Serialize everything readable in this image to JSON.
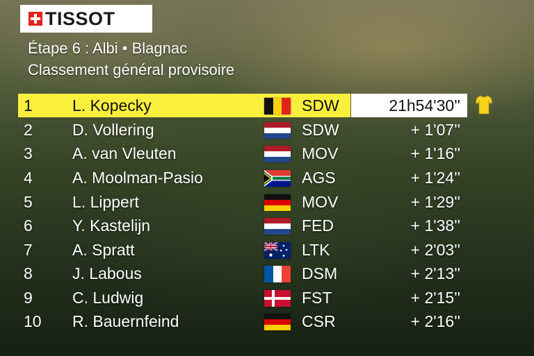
{
  "brand": {
    "name": "TISSOT"
  },
  "header": {
    "line1": "Étape 6 : Albi • Blagnac",
    "line2": "Classement général provisoire"
  },
  "standings": [
    {
      "rank": "1",
      "rider": "L. Kopecky",
      "flag": "belgium",
      "team": "SDW",
      "time": "21h54'30''"
    },
    {
      "rank": "2",
      "rider": "D. Vollering",
      "flag": "netherlands",
      "team": "SDW",
      "time": "+  1'07''"
    },
    {
      "rank": "3",
      "rider": "A. van Vleuten",
      "flag": "netherlands",
      "team": "MOV",
      "time": "+  1'16''"
    },
    {
      "rank": "4",
      "rider": "A. Moolman-Pasio",
      "flag": "south-africa",
      "team": "AGS",
      "time": "+  1'24''"
    },
    {
      "rank": "5",
      "rider": "L. Lippert",
      "flag": "germany",
      "team": "MOV",
      "time": "+  1'29''"
    },
    {
      "rank": "6",
      "rider": "Y. Kastelijn",
      "flag": "netherlands",
      "team": "FED",
      "time": "+  1'38''"
    },
    {
      "rank": "7",
      "rider": "A. Spratt",
      "flag": "australia",
      "team": "LTK",
      "time": "+  2'03''"
    },
    {
      "rank": "8",
      "rider": "J. Labous",
      "flag": "france",
      "team": "DSM",
      "time": "+  2'13''"
    },
    {
      "rank": "9",
      "rider": "C. Ludwig",
      "flag": "denmark",
      "team": "FST",
      "time": "+  2'15''"
    },
    {
      "rank": "10",
      "rider": "R. Bauernfeind",
      "flag": "germany",
      "team": "CSR",
      "time": "+  2'16''"
    }
  ],
  "icons": {
    "leader_jersey": "yellow-jersey-icon",
    "brand_cross": "swiss-cross-icon"
  },
  "colors": {
    "leader_highlight": "#fbef3e",
    "time_box": "#ffffff",
    "text": "#ffffff"
  }
}
